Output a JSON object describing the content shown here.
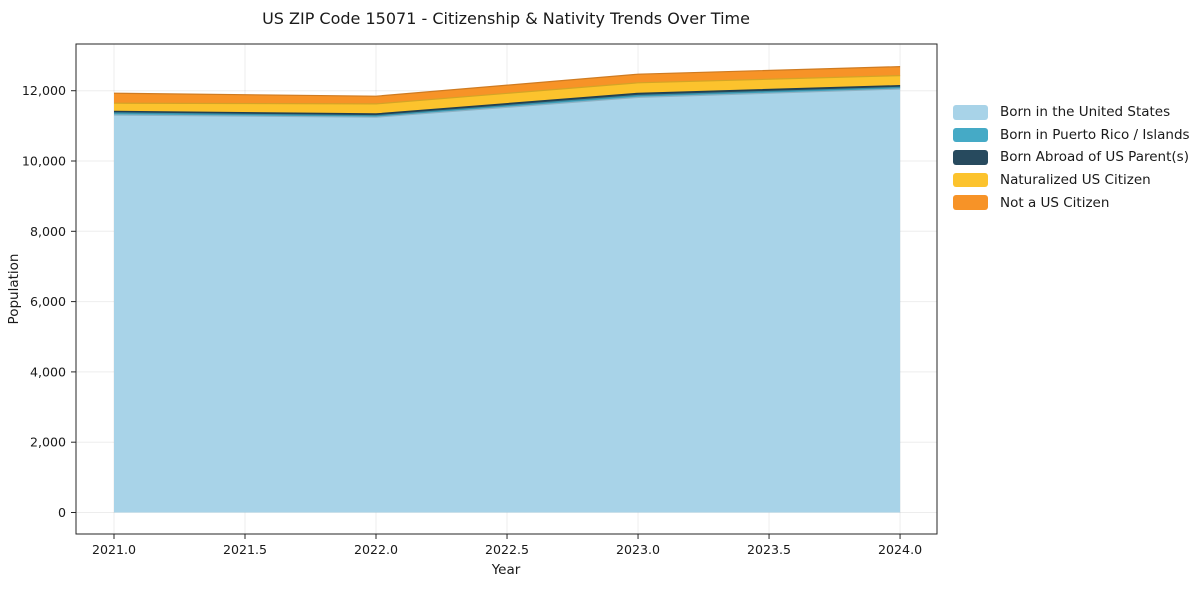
{
  "figure": {
    "background": "#ffffff",
    "text_color": "#1a1a1a",
    "spine_color": "#262626",
    "grid_color": "#000000",
    "grid_opacity": 0.07
  },
  "chart_data": {
    "type": "area",
    "stacked": true,
    "title": "US ZIP Code 15071 - Citizenship & Nativity Trends Over Time",
    "xlabel": "Year",
    "ylabel": "Population",
    "x": [
      2021,
      2022,
      2023,
      2024
    ],
    "series": [
      {
        "name": "Born in the United States",
        "color": "#a8d3e8",
        "values": [
          11310,
          11245,
          11810,
          12050
        ]
      },
      {
        "name": "Born in Puerto Rico / Islands",
        "color": "#45aac6",
        "values": [
          55,
          45,
          55,
          45
        ]
      },
      {
        "name": "Born Abroad of US Parent(s)",
        "color": "#274a5e",
        "values": [
          50,
          50,
          60,
          50
        ]
      },
      {
        "name": "Naturalized US Citizen",
        "color": "#fcc32d",
        "values": [
          230,
          285,
          300,
          285
        ]
      },
      {
        "name": "Not a US Citizen",
        "color": "#f79327",
        "values": [
          285,
          220,
          245,
          255
        ]
      }
    ],
    "totals": [
      11930,
      11845,
      12470,
      12685
    ],
    "xlim": [
      2020.855,
      2024.141
    ],
    "ylim": [
      -612,
      13329
    ],
    "x_tick_values": [
      2021.0,
      2021.5,
      2022.0,
      2022.5,
      2023.0,
      2023.5,
      2024.0
    ],
    "x_tick_labels": [
      "2021.0",
      "2021.5",
      "2022.0",
      "2022.5",
      "2023.0",
      "2023.5",
      "2024.0"
    ],
    "y_tick_values": [
      0,
      2000,
      4000,
      6000,
      8000,
      10000,
      12000
    ],
    "y_tick_labels": [
      "0",
      "2,000",
      "4,000",
      "6,000",
      "8,000",
      "10,000",
      "12,000"
    ],
    "grid": true,
    "legend_position": "right-outside",
    "legend_frame": false
  }
}
